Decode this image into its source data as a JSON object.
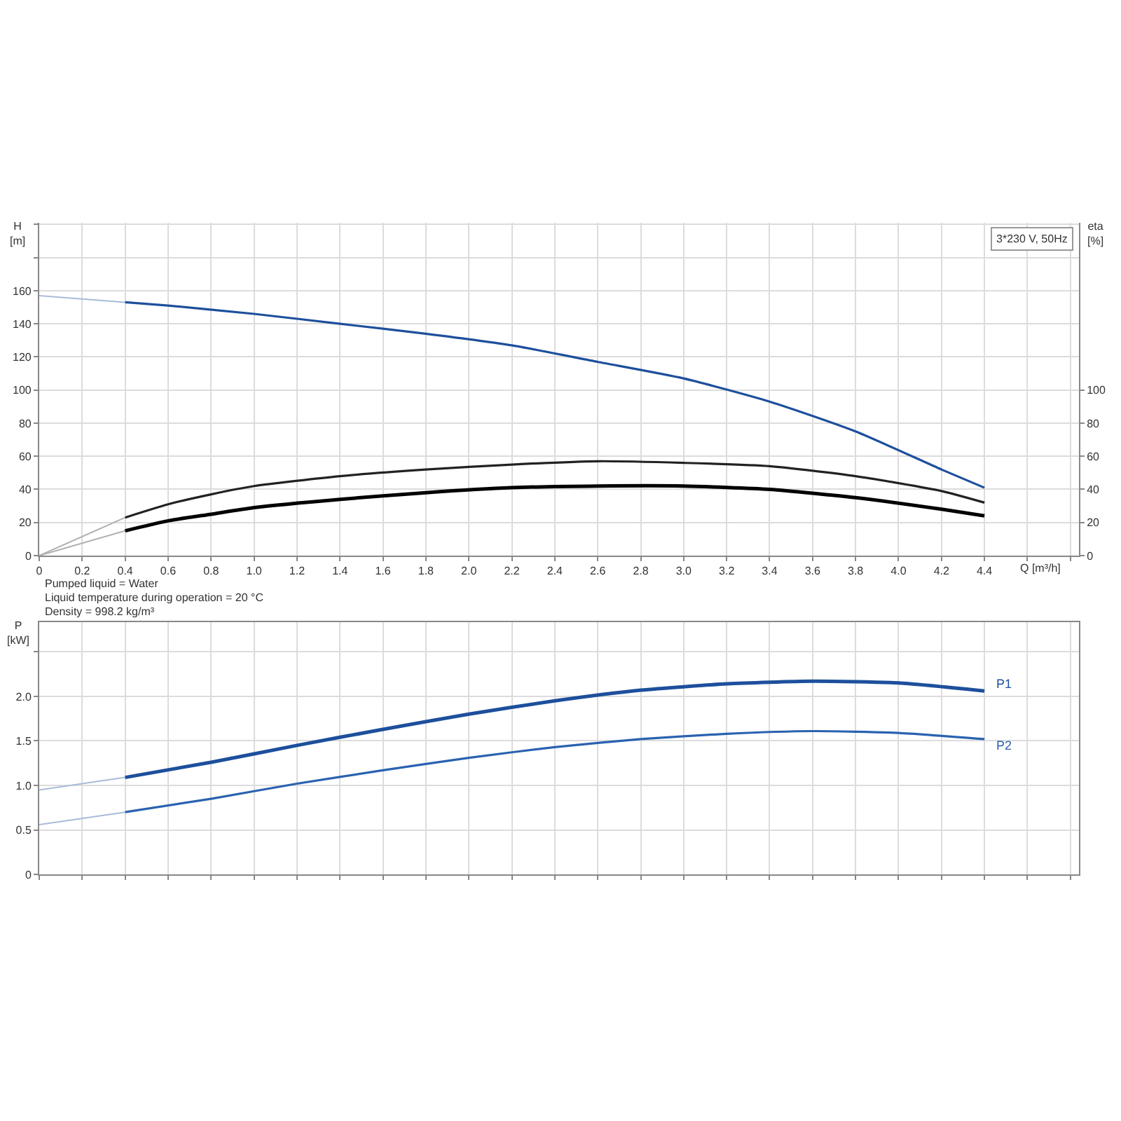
{
  "chart_data": [
    {
      "type": "line",
      "xlabel": "Q [m³/h]",
      "ylabel": "H [m]",
      "y2label": "eta [%]",
      "annotations": [
        "3*230 V, 50Hz",
        "Pumped liquid = Water",
        "Liquid temperature during operation = 20 °C",
        "Density = 998.2 kg/m³"
      ],
      "xlim": [
        0,
        4.84
      ],
      "xticks": [
        0,
        0.2,
        0.4,
        0.6,
        0.8,
        {
          "value": 1,
          "label": "1.0"
        },
        1.2,
        1.4,
        1.6,
        1.8,
        {
          "value": 2,
          "label": "2.0"
        },
        2.2,
        2.4,
        2.6,
        2.8,
        {
          "value": 3,
          "label": "3.0"
        },
        3.2,
        3.4,
        3.6,
        3.8,
        {
          "value": 4,
          "label": "4.0"
        },
        4.2,
        4.4,
        {
          "value": 4.6,
          "label": null
        },
        {
          "value": 4.8,
          "label": null
        }
      ],
      "ylim": [
        0,
        201
      ],
      "yticks": [
        0,
        20,
        40,
        60,
        80,
        100,
        120,
        140,
        160,
        {
          "value": 180,
          "label": null
        },
        {
          "value": 200,
          "label": null
        }
      ],
      "y2lim": [
        0,
        201
      ],
      "y2ticks": [
        0,
        20,
        40,
        60,
        80,
        100
      ],
      "grid": true,
      "series": [
        {
          "color": "#a9bcd9",
          "x": [
            0,
            0.4
          ],
          "values": [
            157,
            153
          ]
        },
        {
          "color": "#1d4f9c",
          "x": [
            0.4,
            0.6,
            1.0,
            1.4,
            1.8,
            2.2,
            2.6,
            3.0,
            3.4,
            3.8,
            4.2,
            4.4
          ],
          "values": [
            153,
            151,
            146,
            140,
            134,
            127,
            117,
            107,
            93,
            75,
            52,
            41
          ]
        },
        {
          "color": "#b0b0b0",
          "axis": "y2",
          "x": [
            0,
            0.4
          ],
          "values": [
            0,
            23
          ]
        },
        {
          "color": "#222222",
          "axis": "y2",
          "x": [
            0.4,
            0.6,
            0.8,
            1.0,
            1.4,
            1.8,
            2.2,
            2.6,
            3.0,
            3.4,
            3.8,
            4.2,
            4.4
          ],
          "values": [
            23,
            31,
            37,
            42,
            48,
            52,
            55,
            57,
            56,
            54,
            48,
            39,
            32
          ]
        },
        {
          "color": "#b0b0b0",
          "axis": "y2",
          "x": [
            0,
            0.4
          ],
          "values": [
            0,
            15
          ]
        },
        {
          "color": "#000000",
          "axis": "y2",
          "x": [
            0.4,
            0.6,
            0.8,
            1.0,
            1.4,
            1.8,
            2.2,
            2.6,
            3.0,
            3.4,
            3.8,
            4.2,
            4.4
          ],
          "values": [
            15,
            21,
            25,
            29,
            34,
            38,
            41,
            42,
            42,
            40,
            35,
            28,
            24
          ]
        }
      ]
    },
    {
      "type": "line",
      "ylabel": "P [kW]",
      "xlim": [
        0,
        4.84
      ],
      "xticks": [
        0,
        0.2,
        0.4,
        0.6,
        0.8,
        1.0,
        1.2,
        1.4,
        1.6,
        1.8,
        2.0,
        2.2,
        2.4,
        2.6,
        2.8,
        3.0,
        3.2,
        3.4,
        3.6,
        3.8,
        4.0,
        4.2,
        4.4,
        4.6,
        4.8
      ],
      "ylim": [
        0,
        2.83
      ],
      "yticks": [
        0,
        0.5,
        {
          "value": 1.0,
          "label": "1.0"
        },
        1.5,
        {
          "value": 2.0,
          "label": "2.0"
        },
        {
          "value": 2.5,
          "label": null
        }
      ],
      "tick_labels": "y",
      "grid": true,
      "series": [
        {
          "color": "#a9bcd9",
          "x": [
            0,
            0.4
          ],
          "values": [
            0.95,
            1.09
          ]
        },
        {
          "name": "P1",
          "color": "#1d4f9c",
          "x": [
            0.4,
            0.8,
            1.2,
            1.6,
            2.0,
            2.4,
            2.8,
            3.2,
            3.6,
            4.0,
            4.4
          ],
          "values": [
            1.09,
            1.26,
            1.45,
            1.63,
            1.8,
            1.95,
            2.07,
            2.14,
            2.17,
            2.15,
            2.06
          ]
        },
        {
          "color": "#a9bcd9",
          "x": [
            0,
            0.4
          ],
          "values": [
            0.56,
            0.7
          ]
        },
        {
          "name": "P2",
          "color": "#2a62b0",
          "x": [
            0.4,
            0.8,
            1.2,
            1.6,
            2.0,
            2.4,
            2.8,
            3.2,
            3.6,
            4.0,
            4.4
          ],
          "values": [
            0.7,
            0.85,
            1.02,
            1.17,
            1.31,
            1.43,
            1.52,
            1.58,
            1.61,
            1.59,
            1.52
          ]
        }
      ]
    }
  ]
}
